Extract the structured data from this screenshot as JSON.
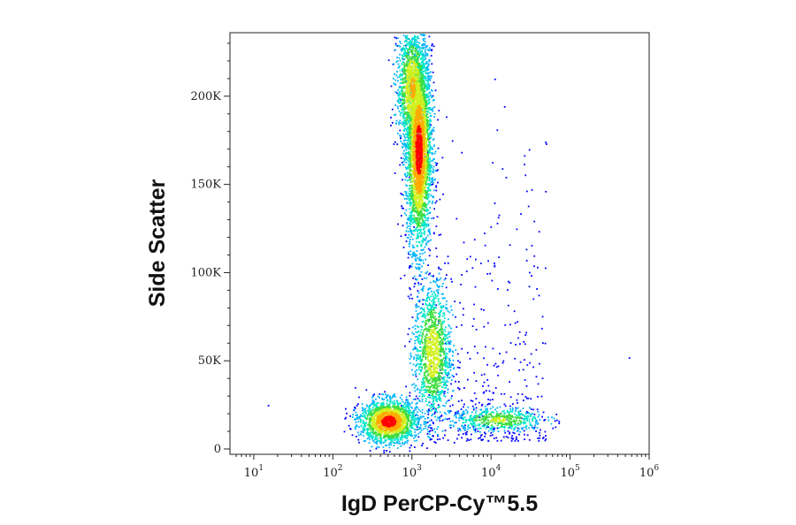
{
  "chart_data": {
    "type": "scatter",
    "style": "pseudocolor density flow-cytometry dot plot",
    "xlabel": "IgD PerCP-Cy™5.5",
    "ylabel": "Side Scatter",
    "x_scale": "log",
    "xlim": [
      5,
      1000000
    ],
    "y_scale": "linear",
    "ylim": [
      -3000,
      236000
    ],
    "x_ticks": [
      {
        "base": "10",
        "exp": "1",
        "value": 10
      },
      {
        "base": "10",
        "exp": "2",
        "value": 100
      },
      {
        "base": "10",
        "exp": "3",
        "value": 1000
      },
      {
        "base": "10",
        "exp": "4",
        "value": 10000
      },
      {
        "base": "10",
        "exp": "5",
        "value": 100000
      },
      {
        "base": "10",
        "exp": "6",
        "value": 1000000
      }
    ],
    "y_ticks": [
      {
        "label": "0",
        "value": 0
      },
      {
        "label": "50K",
        "value": 50000
      },
      {
        "label": "100K",
        "value": 100000
      },
      {
        "label": "150K",
        "value": 150000
      },
      {
        "label": "200K",
        "value": 200000
      }
    ],
    "density_colormap": [
      "#0000ff",
      "#00b4ff",
      "#00e6c8",
      "#3cdc3c",
      "#d2f01e",
      "#ffaa00",
      "#ff0000"
    ],
    "populations": [
      {
        "x_center": 1200,
        "x_spread_decades": 0.08,
        "y_center": 170000,
        "y_spread": 28000,
        "count": 3200,
        "peak_density": 1.0
      },
      {
        "x_center": 1000,
        "x_spread_decades": 0.1,
        "y_center": 205000,
        "y_spread": 18000,
        "count": 1400,
        "peak_density": 0.7
      },
      {
        "x_center": 500,
        "x_spread_decades": 0.18,
        "y_center": 16000,
        "y_spread": 6000,
        "count": 1800,
        "peak_density": 1.0
      },
      {
        "x_center": 1800,
        "x_spread_decades": 0.12,
        "y_center": 55000,
        "y_spread": 20000,
        "count": 1300,
        "peak_density": 0.6
      },
      {
        "x_center": 12000,
        "x_spread_decades": 0.3,
        "y_center": 17000,
        "y_spread": 3500,
        "count": 500,
        "peak_density": 0.5
      }
    ],
    "outliers": [
      {
        "x": 15,
        "y": 25000
      },
      {
        "x": 550000,
        "y": 52000
      },
      {
        "x": 30000,
        "y": 170000
      },
      {
        "x": 11000,
        "y": 210000
      }
    ],
    "grid": false,
    "legend": "none"
  }
}
